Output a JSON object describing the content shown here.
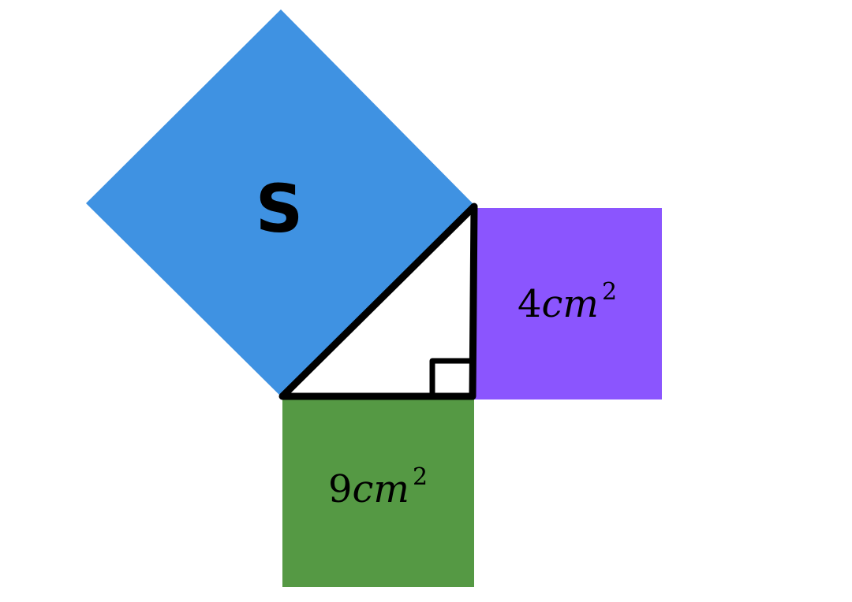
{
  "hypotenuse_square": {
    "label": "S",
    "color": "#3f92e2"
  },
  "vertical_leg_square": {
    "value": "4",
    "unit": "cm",
    "exponent": "2",
    "color": "#8b55fe"
  },
  "horizontal_leg_square": {
    "value": "9",
    "unit": "cm",
    "exponent": "2",
    "color": "#559944"
  },
  "triangle": {
    "stroke_color": "#000000",
    "fill_color": "#ffffff",
    "right_angle_marker": true
  }
}
